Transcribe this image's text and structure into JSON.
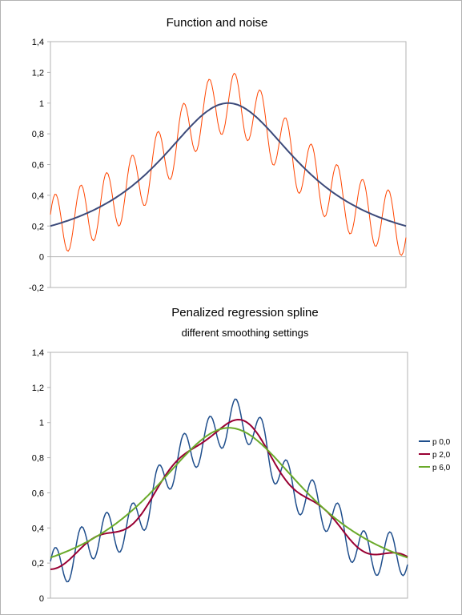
{
  "chart_data": [
    {
      "type": "line",
      "title": "Function and noise",
      "subtitle": "",
      "xlabel": "",
      "ylabel": "",
      "ylim": [
        -0.2,
        1.4
      ],
      "yticks": [
        "-0,2",
        "0",
        "0,2",
        "0,4",
        "0,6",
        "0,8",
        "1",
        "1,2",
        "1,4"
      ],
      "x": {
        "start": -4,
        "end": 4,
        "count": 241
      },
      "grid": "horizontal at 0 only",
      "legend": "none",
      "series": [
        {
          "color": "#ff4500",
          "formula": "1/(1+x^2/4) + 0.2*sin(10.9*x)",
          "base": "1/(1+x^2/4)",
          "noise_amplitude": 0.2,
          "noise_frequency": 10.9,
          "stroke": 1
        },
        {
          "color": "#3c4a7a",
          "formula": "1/(1+x^2/4)",
          "base": "1/(1+x^2/4)",
          "noise_amplitude": 0,
          "noise_frequency": 0,
          "stroke": 2
        }
      ]
    },
    {
      "type": "line",
      "title": "Penalized regression spline",
      "subtitle": "different smoothing settings",
      "xlabel": "",
      "ylabel": "",
      "ylim": [
        0,
        1.4
      ],
      "yticks": [
        "0",
        "0,2",
        "0,4",
        "0,6",
        "0,8",
        "1",
        "1,2",
        "1,4"
      ],
      "x": {
        "start": -4,
        "end": 4,
        "count": 241
      },
      "grid": "none",
      "legend": "right",
      "series": [
        {
          "name": "p 0,0",
          "color": "#1f4e8c",
          "formula": "1/(1+x^2/4) + 0.04*sin(3.65*x) + 0.12*sin(10.9*x)",
          "base": "1/(1+x^2/4)",
          "wave1_amplitude": 0.04,
          "wave1_frequency": 3.65,
          "wave2_amplitude": 0.12,
          "wave2_frequency": 10.9,
          "stroke": 1.5
        },
        {
          "name": "p 2,0",
          "color": "#990033",
          "formula": "1/(1+x^2/4) + 0.04*sin(3.65*x)",
          "base": "1/(1+x^2/4)",
          "wave1_amplitude": 0.04,
          "wave1_frequency": 3.65,
          "wave2_amplitude": 0,
          "wave2_frequency": 0,
          "stroke": 2
        },
        {
          "name": "p 6,0",
          "color": "#6aaa2a",
          "formula": "smoothed 1/(1+x^2/4), peak ~0.97",
          "base": "0.97/(1+x^2/5)",
          "wave1_amplitude": 0,
          "wave1_frequency": 0,
          "wave2_amplitude": 0,
          "wave2_frequency": 0,
          "stroke": 2
        }
      ]
    }
  ]
}
